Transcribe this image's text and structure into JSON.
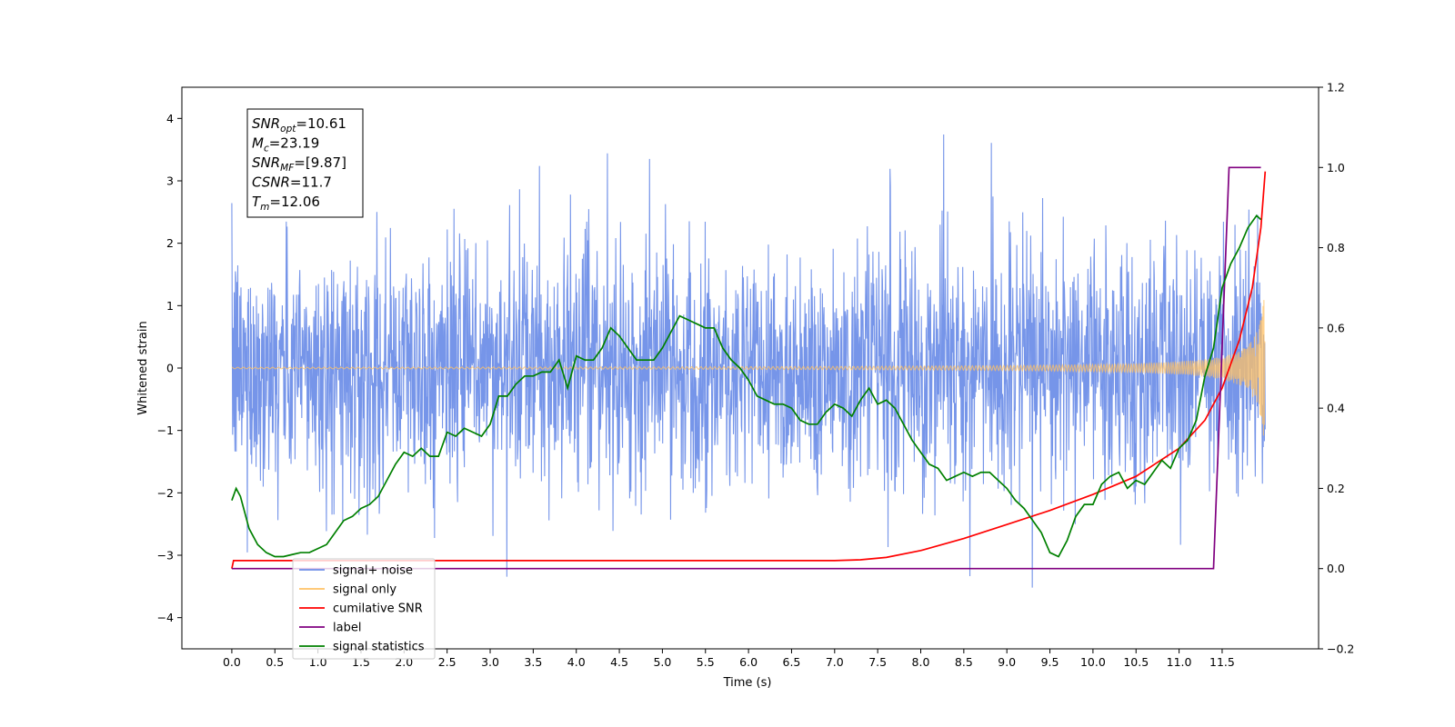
{
  "chart_data": {
    "type": "line",
    "title": "",
    "xlabel": "Time (s)",
    "ylabel": "Whitened strain",
    "xlim": [
      -0.58,
      12.62
    ],
    "ylim": [
      -4.5,
      4.5
    ],
    "y2lim": [
      -0.2,
      1.2
    ],
    "x_ticks": [
      "0.0",
      "0.5",
      "1.0",
      "1.5",
      "2.0",
      "2.5",
      "3.0",
      "3.5",
      "4.0",
      "4.5",
      "5.0",
      "5.5",
      "6.0",
      "6.5",
      "7.0",
      "7.5",
      "8.0",
      "8.5",
      "9.0",
      "9.5",
      "10.0",
      "10.5",
      "11.0",
      "11.5"
    ],
    "y_ticks": [
      "4",
      "3",
      "2",
      "1",
      "0",
      "−1",
      "−2",
      "−3",
      "−4"
    ],
    "y2_ticks": [
      "1.2",
      "1.0",
      "0.8",
      "0.6",
      "0.4",
      "0.2",
      "0.0",
      "−0.2"
    ],
    "grid": false,
    "legend": {
      "position": "lower-left",
      "entries": [
        {
          "label": "signal+ noise",
          "color": "#6f8fe8"
        },
        {
          "label": "signal only",
          "color": "#ffc266"
        },
        {
          "label": "cumilative SNR",
          "color": "#ff0000"
        },
        {
          "label": "label",
          "color": "#800080"
        },
        {
          "label": "signal statistics",
          "color": "#008000"
        }
      ]
    },
    "annotation": [
      {
        "sym": "SNR",
        "sub": "opt",
        "value": "=10.61"
      },
      {
        "sym": "M",
        "sub": "c",
        "value": "=23.19"
      },
      {
        "sym": "SNR",
        "sub": "MF",
        "value": "=[9.87]"
      },
      {
        "sym": "CSNR",
        "sub": "",
        "value": "=11.7"
      },
      {
        "sym": "T",
        "sub": "m",
        "value": "=12.06"
      }
    ],
    "series": [
      {
        "name": "signal+ noise",
        "axis": "left",
        "color": "#6f8fe8",
        "description_of_values": "whitened noise, amplitude mostly within ±2.5 with spikes to about ±4, from 0 to 12.0 s",
        "x_range": [
          0.0,
          12.0
        ]
      },
      {
        "name": "signal only",
        "axis": "left",
        "color": "#ffc266",
        "chirp": {
          "t_start": 0.0,
          "t_end": 12.0,
          "t_merger": 12.06,
          "final_amplitude": 1.4
        }
      },
      {
        "name": "cumilative SNR",
        "axis": "right",
        "color": "#ff0000",
        "x": [
          0.0,
          0.02,
          7.0,
          7.3,
          7.6,
          8.0,
          8.5,
          9.0,
          9.5,
          10.0,
          10.5,
          11.0,
          11.3,
          11.5,
          11.7,
          11.85,
          11.95,
          12.0
        ],
        "y": [
          0.0,
          0.02,
          0.02,
          0.022,
          0.028,
          0.045,
          0.075,
          0.11,
          0.145,
          0.185,
          0.23,
          0.3,
          0.37,
          0.45,
          0.57,
          0.7,
          0.85,
          0.99
        ]
      },
      {
        "name": "label",
        "axis": "right",
        "color": "#800080",
        "x": [
          0.0,
          11.4,
          11.58,
          11.95
        ],
        "y": [
          0.0,
          0.0,
          1.0,
          1.0
        ]
      },
      {
        "name": "signal statistics",
        "axis": "right",
        "color": "#008000",
        "x": [
          0.0,
          0.05,
          0.1,
          0.15,
          0.2,
          0.3,
          0.4,
          0.5,
          0.6,
          0.7,
          0.8,
          0.9,
          1.0,
          1.1,
          1.2,
          1.3,
          1.4,
          1.5,
          1.6,
          1.7,
          1.8,
          1.9,
          2.0,
          2.1,
          2.2,
          2.3,
          2.4,
          2.5,
          2.6,
          2.7,
          2.8,
          2.9,
          3.0,
          3.1,
          3.2,
          3.3,
          3.4,
          3.5,
          3.6,
          3.7,
          3.8,
          3.9,
          4.0,
          4.1,
          4.2,
          4.3,
          4.4,
          4.5,
          4.6,
          4.7,
          4.8,
          4.9,
          5.0,
          5.1,
          5.2,
          5.3,
          5.4,
          5.5,
          5.6,
          5.7,
          5.8,
          5.9,
          6.0,
          6.1,
          6.2,
          6.3,
          6.4,
          6.5,
          6.6,
          6.7,
          6.8,
          6.9,
          7.0,
          7.1,
          7.2,
          7.3,
          7.4,
          7.5,
          7.6,
          7.7,
          7.8,
          7.9,
          8.0,
          8.1,
          8.2,
          8.3,
          8.4,
          8.5,
          8.6,
          8.7,
          8.8,
          8.9,
          9.0,
          9.1,
          9.2,
          9.3,
          9.4,
          9.5,
          9.6,
          9.7,
          9.8,
          9.9,
          10.0,
          10.1,
          10.2,
          10.3,
          10.4,
          10.5,
          10.6,
          10.7,
          10.8,
          10.9,
          11.0,
          11.1,
          11.2,
          11.3,
          11.4,
          11.5,
          11.6,
          11.7,
          11.8,
          11.9,
          11.95
        ],
        "y": [
          0.17,
          0.2,
          0.18,
          0.14,
          0.1,
          0.06,
          0.04,
          0.03,
          0.03,
          0.035,
          0.04,
          0.04,
          0.05,
          0.06,
          0.09,
          0.12,
          0.13,
          0.15,
          0.16,
          0.18,
          0.22,
          0.26,
          0.29,
          0.28,
          0.3,
          0.28,
          0.28,
          0.34,
          0.33,
          0.35,
          0.34,
          0.33,
          0.36,
          0.43,
          0.43,
          0.46,
          0.48,
          0.48,
          0.49,
          0.49,
          0.52,
          0.45,
          0.53,
          0.52,
          0.52,
          0.55,
          0.6,
          0.58,
          0.55,
          0.52,
          0.52,
          0.52,
          0.55,
          0.59,
          0.63,
          0.62,
          0.61,
          0.6,
          0.6,
          0.55,
          0.52,
          0.5,
          0.47,
          0.43,
          0.42,
          0.41,
          0.41,
          0.4,
          0.37,
          0.36,
          0.36,
          0.39,
          0.41,
          0.4,
          0.38,
          0.42,
          0.45,
          0.41,
          0.42,
          0.4,
          0.36,
          0.32,
          0.29,
          0.26,
          0.25,
          0.22,
          0.23,
          0.24,
          0.23,
          0.24,
          0.24,
          0.22,
          0.2,
          0.17,
          0.15,
          0.12,
          0.09,
          0.04,
          0.03,
          0.07,
          0.13,
          0.16,
          0.16,
          0.21,
          0.23,
          0.24,
          0.2,
          0.22,
          0.21,
          0.24,
          0.27,
          0.25,
          0.3,
          0.32,
          0.37,
          0.48,
          0.55,
          0.7,
          0.76,
          0.8,
          0.85,
          0.88,
          0.87
        ]
      }
    ]
  }
}
